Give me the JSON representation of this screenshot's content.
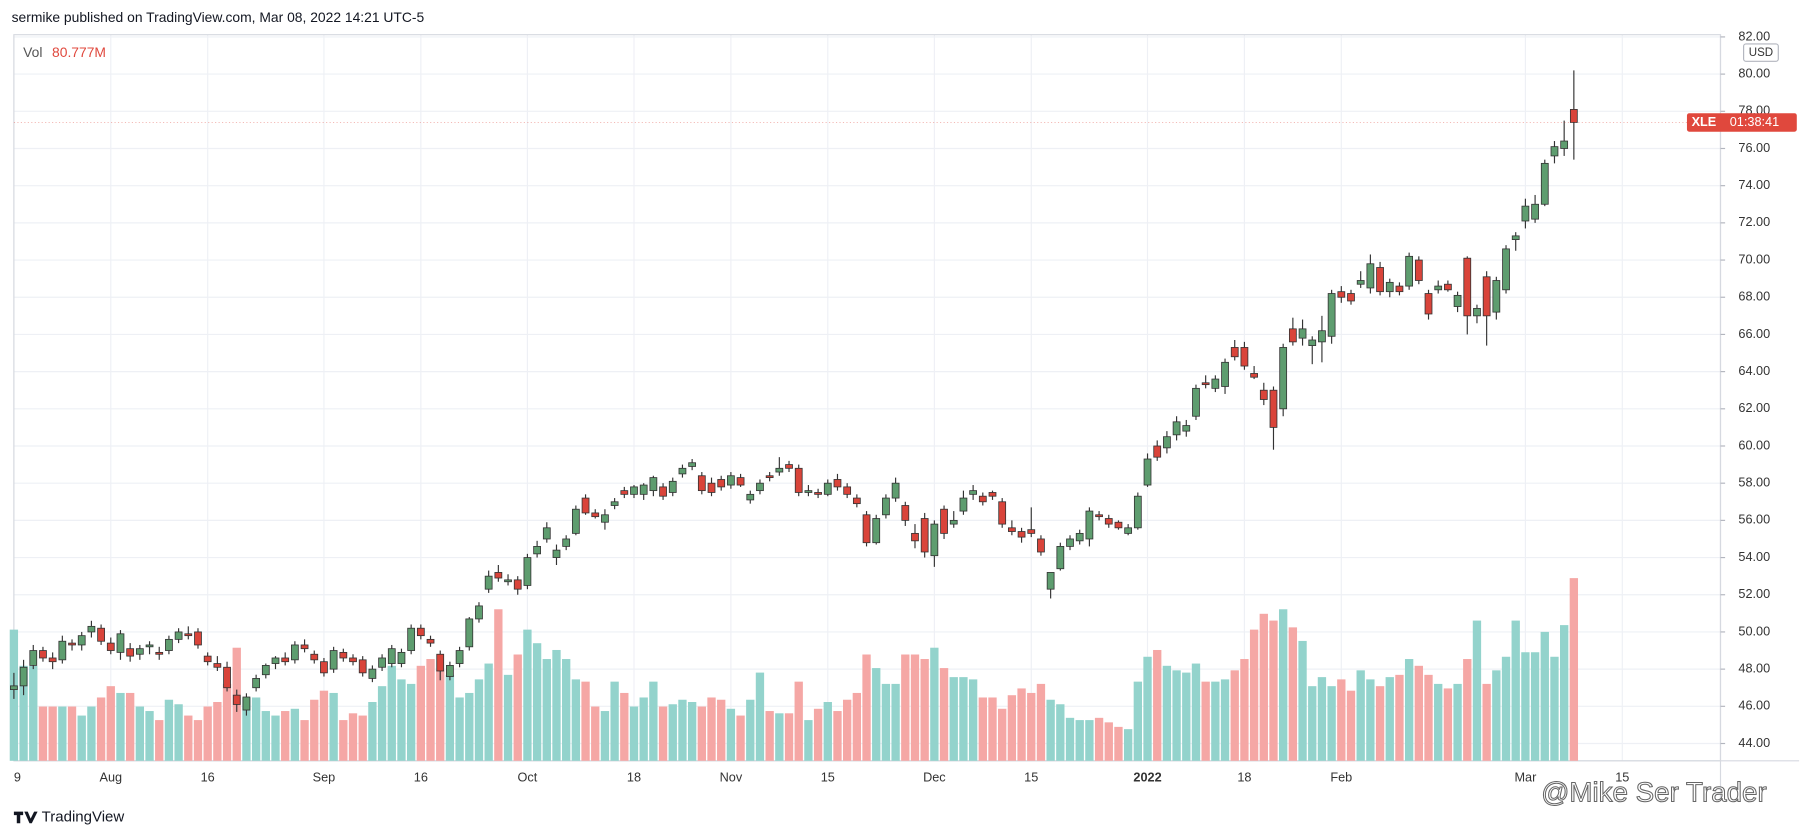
{
  "header": {
    "text": "sermike published on TradingView.com, Mar 08, 2022 14:21 UTC-5"
  },
  "footer": {
    "brand": "TradingView",
    "watermark": "@Mike Ser Trader"
  },
  "chart_data": {
    "type": "candlestick",
    "symbol": "XLE",
    "countdown": "01:38:41",
    "currency": "USD",
    "volume_label": "Vol",
    "volume_last_label": "80.777M",
    "up_color": "#5e9d6f",
    "down_color": "#d9443a",
    "volume_up_color": "#93d3cc",
    "volume_down_color": "#f5a7a5",
    "tag_color": "#e0483d",
    "grid": true,
    "ylim": [
      43.07,
      82.12
    ],
    "yticks": [
      {
        "value": 44,
        "label": "44.00"
      },
      {
        "value": 46,
        "label": "46.00"
      },
      {
        "value": 48,
        "label": "48.00"
      },
      {
        "value": 50,
        "label": "50.00"
      },
      {
        "value": 52,
        "label": "52.00"
      },
      {
        "value": 54,
        "label": "54.00"
      },
      {
        "value": 56,
        "label": "56.00"
      },
      {
        "value": 58,
        "label": "58.00"
      },
      {
        "value": 60,
        "label": "60.00"
      },
      {
        "value": 62,
        "label": "62.00"
      },
      {
        "value": 64,
        "label": "64.00"
      },
      {
        "value": 66,
        "label": "66.00"
      },
      {
        "value": 68,
        "label": "68.00"
      },
      {
        "value": 70,
        "label": "70.00"
      },
      {
        "value": 72,
        "label": "72.00"
      },
      {
        "value": 74,
        "label": "74.00"
      },
      {
        "value": 76,
        "label": "76.00"
      },
      {
        "value": 78,
        "label": "78.00"
      },
      {
        "value": 80,
        "label": "80.00"
      },
      {
        "value": 82,
        "label": "82.00"
      }
    ],
    "categories": [
      "9",
      null,
      null,
      null,
      null,
      null,
      null,
      null,
      null,
      null,
      "Aug",
      null,
      null,
      null,
      null,
      null,
      null,
      null,
      null,
      null,
      "16",
      null,
      null,
      null,
      null,
      null,
      null,
      null,
      null,
      null,
      null,
      null,
      "Sep",
      null,
      null,
      null,
      null,
      null,
      null,
      null,
      null,
      null,
      "16",
      null,
      null,
      null,
      null,
      null,
      null,
      null,
      null,
      null,
      null,
      "Oct",
      null,
      null,
      null,
      null,
      null,
      null,
      null,
      null,
      null,
      null,
      "18",
      null,
      null,
      null,
      null,
      null,
      null,
      null,
      null,
      null,
      "Nov",
      null,
      null,
      null,
      null,
      null,
      null,
      null,
      null,
      null,
      "15",
      null,
      null,
      null,
      null,
      null,
      null,
      null,
      null,
      null,
      null,
      "Dec",
      null,
      null,
      null,
      null,
      null,
      null,
      null,
      null,
      null,
      "15",
      null,
      null,
      null,
      null,
      null,
      null,
      null,
      null,
      null,
      null,
      null,
      "2022",
      null,
      null,
      null,
      null,
      null,
      null,
      null,
      null,
      null,
      "18",
      null,
      null,
      null,
      null,
      null,
      null,
      null,
      null,
      null,
      "Feb",
      null,
      null,
      null,
      null,
      null,
      null,
      null,
      null,
      null,
      null,
      null,
      null,
      null,
      null,
      null,
      null,
      null,
      null,
      "Mar",
      null,
      null,
      null,
      null,
      null,
      null,
      null,
      null,
      null,
      "15"
    ],
    "ohlc": [
      [
        46.9,
        47.8,
        46.4,
        47.1
      ],
      [
        47.1,
        48.5,
        46.6,
        48.1
      ],
      [
        48.2,
        49.3,
        48.0,
        49.0
      ],
      [
        49.0,
        49.2,
        48.4,
        48.6
      ],
      [
        48.6,
        48.9,
        48.0,
        48.4
      ],
      [
        48.5,
        49.8,
        48.3,
        49.5
      ],
      [
        49.4,
        49.6,
        49.0,
        49.3
      ],
      [
        49.3,
        50.0,
        49.0,
        49.8
      ],
      [
        50.0,
        50.6,
        49.7,
        50.3
      ],
      [
        50.2,
        50.4,
        49.3,
        49.5
      ],
      [
        49.4,
        49.7,
        48.8,
        49.0
      ],
      [
        48.9,
        50.1,
        48.5,
        49.9
      ],
      [
        49.1,
        49.4,
        48.4,
        48.7
      ],
      [
        48.8,
        49.3,
        48.5,
        49.1
      ],
      [
        49.2,
        49.5,
        48.8,
        49.3
      ],
      [
        48.9,
        49.2,
        48.5,
        48.8
      ],
      [
        49.0,
        49.8,
        48.8,
        49.6
      ],
      [
        49.6,
        50.2,
        49.4,
        50.0
      ],
      [
        49.9,
        50.3,
        49.6,
        49.8
      ],
      [
        50.0,
        50.2,
        49.1,
        49.3
      ],
      [
        48.7,
        48.9,
        48.2,
        48.4
      ],
      [
        48.3,
        48.7,
        47.9,
        48.1
      ],
      [
        48.1,
        48.4,
        46.8,
        47.0
      ],
      [
        46.6,
        46.9,
        45.7,
        46.1
      ],
      [
        45.8,
        46.7,
        45.5,
        46.5
      ],
      [
        47.0,
        47.7,
        46.8,
        47.5
      ],
      [
        47.7,
        48.3,
        47.5,
        48.2
      ],
      [
        48.3,
        48.7,
        48.0,
        48.6
      ],
      [
        48.6,
        48.9,
        48.2,
        48.4
      ],
      [
        48.5,
        49.5,
        48.3,
        49.3
      ],
      [
        49.3,
        49.6,
        48.9,
        49.1
      ],
      [
        48.8,
        49.0,
        48.3,
        48.5
      ],
      [
        48.4,
        48.6,
        47.6,
        47.8
      ],
      [
        48.0,
        49.2,
        47.8,
        49.0
      ],
      [
        48.9,
        49.1,
        48.4,
        48.6
      ],
      [
        48.6,
        48.8,
        48.2,
        48.4
      ],
      [
        48.5,
        48.7,
        47.6,
        47.8
      ],
      [
        47.5,
        48.2,
        47.3,
        48.0
      ],
      [
        48.1,
        48.8,
        47.9,
        48.6
      ],
      [
        48.3,
        49.3,
        48.1,
        49.1
      ],
      [
        48.3,
        49.1,
        48.1,
        48.9
      ],
      [
        49.0,
        50.4,
        48.8,
        50.2
      ],
      [
        50.2,
        50.4,
        49.6,
        49.8
      ],
      [
        49.6,
        49.8,
        49.2,
        49.4
      ],
      [
        48.8,
        49.0,
        47.4,
        47.9
      ],
      [
        47.6,
        48.4,
        47.4,
        48.2
      ],
      [
        48.3,
        49.2,
        48.1,
        49.0
      ],
      [
        49.2,
        50.8,
        49.0,
        50.7
      ],
      [
        50.7,
        51.6,
        50.5,
        51.4
      ],
      [
        52.3,
        53.3,
        52.1,
        53.0
      ],
      [
        53.2,
        53.6,
        52.7,
        52.9
      ],
      [
        52.7,
        53.1,
        52.5,
        52.8
      ],
      [
        52.8,
        53.0,
        52.0,
        52.3
      ],
      [
        52.5,
        54.2,
        52.3,
        54.0
      ],
      [
        54.2,
        54.9,
        54.0,
        54.6
      ],
      [
        55.0,
        55.9,
        54.8,
        55.6
      ],
      [
        54.0,
        54.7,
        53.6,
        54.4
      ],
      [
        54.6,
        55.2,
        54.4,
        55.0
      ],
      [
        55.3,
        56.8,
        55.2,
        56.6
      ],
      [
        57.2,
        57.4,
        56.3,
        56.4
      ],
      [
        56.4,
        56.6,
        56.1,
        56.2
      ],
      [
        55.9,
        56.6,
        55.5,
        56.3
      ],
      [
        56.8,
        57.2,
        56.6,
        57.0
      ],
      [
        57.6,
        57.8,
        57.2,
        57.4
      ],
      [
        57.4,
        57.9,
        57.2,
        57.8
      ],
      [
        57.4,
        58.0,
        57.1,
        57.9
      ],
      [
        57.6,
        58.4,
        57.3,
        58.3
      ],
      [
        57.8,
        58.0,
        57.1,
        57.3
      ],
      [
        57.5,
        58.3,
        57.3,
        58.1
      ],
      [
        58.5,
        59.0,
        58.3,
        58.8
      ],
      [
        58.9,
        59.3,
        58.7,
        59.1
      ],
      [
        58.4,
        58.6,
        57.4,
        57.6
      ],
      [
        58.0,
        58.3,
        57.3,
        57.5
      ],
      [
        58.2,
        58.4,
        57.6,
        57.8
      ],
      [
        57.9,
        58.6,
        57.7,
        58.4
      ],
      [
        58.3,
        58.5,
        57.8,
        57.9
      ],
      [
        57.1,
        57.6,
        56.9,
        57.4
      ],
      [
        57.6,
        58.2,
        57.4,
        58.0
      ],
      [
        58.4,
        58.6,
        58.1,
        58.3
      ],
      [
        58.6,
        59.4,
        58.4,
        58.8
      ],
      [
        59.0,
        59.2,
        58.6,
        58.8
      ],
      [
        58.8,
        59.0,
        57.3,
        57.5
      ],
      [
        57.5,
        57.9,
        57.3,
        57.6
      ],
      [
        57.5,
        57.7,
        57.2,
        57.4
      ],
      [
        57.4,
        58.2,
        57.3,
        58.0
      ],
      [
        58.2,
        58.5,
        57.6,
        57.8
      ],
      [
        57.8,
        58.0,
        57.2,
        57.4
      ],
      [
        57.2,
        57.4,
        56.7,
        56.9
      ],
      [
        56.3,
        56.5,
        54.6,
        54.8
      ],
      [
        54.8,
        56.3,
        54.7,
        56.1
      ],
      [
        56.3,
        57.4,
        56.1,
        57.2
      ],
      [
        57.2,
        58.3,
        57.0,
        58.0
      ],
      [
        56.8,
        57.0,
        55.7,
        56.0
      ],
      [
        55.3,
        55.8,
        54.5,
        54.9
      ],
      [
        56.1,
        56.4,
        54.0,
        54.3
      ],
      [
        54.1,
        56.0,
        53.5,
        55.8
      ],
      [
        56.6,
        56.8,
        55.0,
        55.3
      ],
      [
        55.8,
        56.5,
        55.6,
        56.0
      ],
      [
        56.5,
        57.6,
        56.3,
        57.2
      ],
      [
        57.4,
        57.9,
        57.1,
        57.6
      ],
      [
        57.3,
        57.5,
        56.8,
        57.0
      ],
      [
        57.5,
        57.6,
        57.1,
        57.3
      ],
      [
        57.0,
        57.2,
        55.6,
        55.8
      ],
      [
        55.6,
        56.0,
        55.2,
        55.4
      ],
      [
        55.4,
        55.6,
        54.8,
        55.1
      ],
      [
        55.5,
        56.7,
        55.1,
        55.3
      ],
      [
        55.0,
        55.2,
        54.1,
        54.3
      ],
      [
        52.3,
        53.2,
        51.8,
        53.2
      ],
      [
        53.4,
        54.8,
        53.3,
        54.6
      ],
      [
        54.6,
        55.2,
        54.4,
        55.0
      ],
      [
        54.9,
        55.5,
        54.7,
        55.3
      ],
      [
        55.0,
        56.7,
        54.6,
        56.5
      ],
      [
        56.3,
        56.5,
        56.0,
        56.2
      ],
      [
        56.1,
        56.3,
        55.6,
        55.8
      ],
      [
        55.9,
        56.0,
        55.5,
        55.6
      ],
      [
        55.3,
        55.8,
        55.2,
        55.6
      ],
      [
        55.6,
        57.5,
        55.5,
        57.3
      ],
      [
        57.9,
        59.6,
        57.8,
        59.3
      ],
      [
        60.0,
        60.3,
        59.2,
        59.4
      ],
      [
        59.9,
        60.8,
        59.6,
        60.5
      ],
      [
        60.6,
        61.6,
        60.3,
        61.3
      ],
      [
        60.8,
        61.4,
        60.5,
        61.1
      ],
      [
        61.6,
        63.3,
        61.4,
        63.1
      ],
      [
        63.4,
        63.8,
        63.1,
        63.3
      ],
      [
        63.1,
        63.8,
        62.9,
        63.6
      ],
      [
        63.2,
        64.7,
        62.8,
        64.5
      ],
      [
        65.3,
        65.7,
        64.6,
        64.8
      ],
      [
        65.3,
        65.6,
        64.1,
        64.3
      ],
      [
        63.9,
        64.3,
        63.6,
        63.7
      ],
      [
        63.0,
        63.4,
        62.2,
        62.5
      ],
      [
        63.0,
        63.2,
        59.8,
        61.0
      ],
      [
        62.0,
        65.5,
        61.6,
        65.3
      ],
      [
        66.3,
        66.9,
        65.4,
        65.6
      ],
      [
        65.8,
        66.8,
        65.4,
        66.3
      ],
      [
        65.4,
        65.9,
        64.4,
        65.7
      ],
      [
        65.6,
        67.0,
        64.5,
        66.2
      ],
      [
        65.9,
        68.4,
        65.5,
        68.2
      ],
      [
        68.3,
        68.6,
        67.7,
        68.0
      ],
      [
        68.2,
        68.4,
        67.6,
        67.8
      ],
      [
        68.7,
        69.4,
        68.5,
        68.9
      ],
      [
        68.5,
        70.3,
        68.2,
        69.8
      ],
      [
        69.6,
        69.9,
        68.1,
        68.3
      ],
      [
        68.3,
        69.0,
        68.0,
        68.8
      ],
      [
        68.6,
        68.8,
        68.1,
        68.3
      ],
      [
        68.6,
        70.4,
        68.4,
        70.2
      ],
      [
        70.0,
        70.2,
        68.7,
        68.9
      ],
      [
        68.2,
        68.4,
        66.8,
        67.1
      ],
      [
        68.4,
        68.9,
        68.2,
        68.6
      ],
      [
        68.7,
        68.9,
        68.3,
        68.4
      ],
      [
        67.5,
        68.3,
        67.2,
        68.1
      ],
      [
        70.1,
        70.2,
        66.0,
        67.0
      ],
      [
        67.0,
        67.6,
        66.6,
        67.4
      ],
      [
        69.1,
        69.4,
        65.4,
        67.0
      ],
      [
        67.2,
        69.1,
        66.8,
        68.9
      ],
      [
        68.4,
        70.8,
        68.2,
        70.6
      ],
      [
        71.1,
        71.5,
        70.5,
        71.3
      ],
      [
        72.1,
        73.3,
        71.7,
        72.9
      ],
      [
        72.2,
        73.5,
        72.0,
        73.0
      ],
      [
        73.0,
        75.4,
        72.9,
        75.2
      ],
      [
        75.6,
        76.4,
        75.2,
        76.1
      ],
      [
        76.0,
        77.5,
        75.6,
        76.4
      ],
      [
        78.1,
        80.2,
        75.4,
        77.4
      ],
      null,
      null,
      null,
      null,
      null
    ],
    "volume": [
      58,
      42,
      42,
      24,
      24,
      24,
      24,
      20,
      24,
      28,
      33,
      30,
      30,
      24,
      22,
      18,
      27,
      25,
      20,
      18,
      24,
      26,
      34,
      50,
      28,
      28,
      22,
      20,
      22,
      23,
      18,
      27,
      31,
      30,
      18,
      21,
      20,
      26,
      33,
      42,
      36,
      34,
      42,
      45,
      40,
      38,
      28,
      30,
      36,
      43,
      67,
      38,
      47,
      58,
      52,
      45,
      49,
      45,
      36,
      35,
      24,
      22,
      35,
      30,
      24,
      28,
      35,
      24,
      25,
      27,
      26,
      24,
      28,
      27,
      23,
      20,
      27,
      39,
      22,
      21,
      21,
      35,
      18,
      23,
      26,
      22,
      27,
      30,
      47,
      41,
      34,
      34,
      47,
      47,
      45,
      50,
      41,
      37,
      37,
      36,
      28,
      28,
      23,
      29,
      32,
      30,
      34,
      27,
      25,
      19,
      18,
      18,
      19,
      17,
      15,
      14,
      35,
      46,
      49,
      42,
      40,
      39,
      43,
      35,
      35,
      36,
      40,
      45,
      58,
      65,
      62,
      67,
      59,
      53,
      33,
      37,
      33,
      36,
      31,
      40,
      36,
      33,
      37,
      38,
      45,
      42,
      38,
      34,
      32,
      34,
      45,
      62,
      34,
      40,
      46,
      62,
      48,
      48,
      57,
      46,
      60,
      80.777,
      null,
      null,
      null,
      null,
      null
    ]
  }
}
